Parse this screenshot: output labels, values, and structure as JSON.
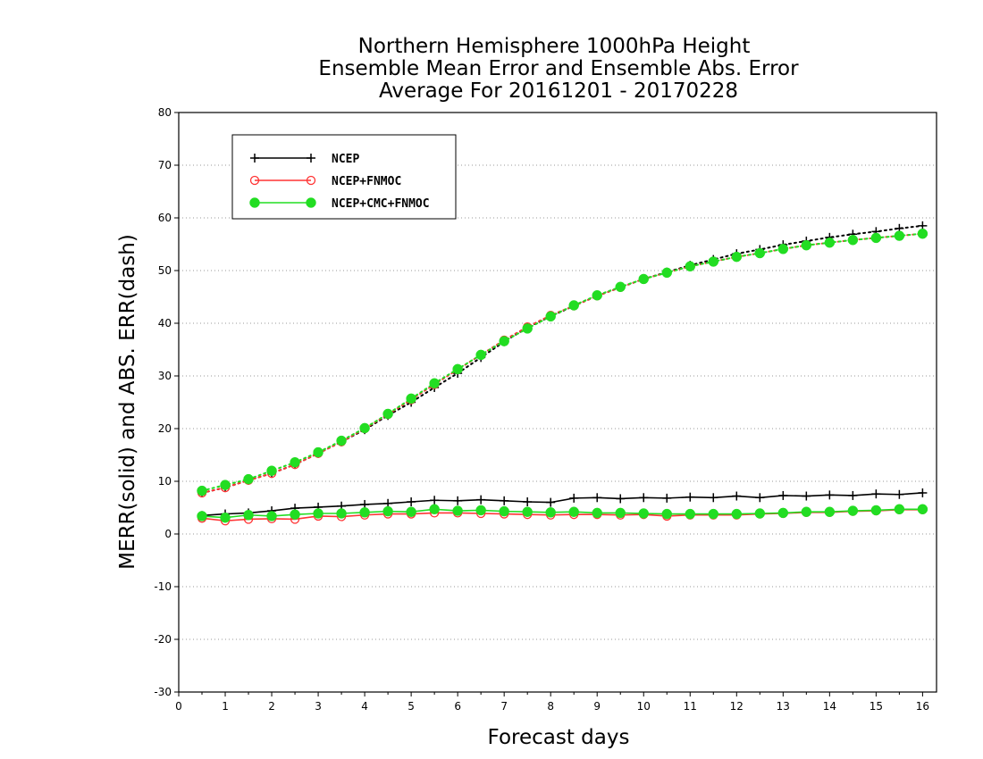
{
  "chart_data": {
    "type": "line",
    "title": [
      "Northern Hemisphere 1000hPa Height",
      "Ensemble Mean Error and Ensemble Abs. Error",
      "Average For 20161201 - 20170228"
    ],
    "xlabel": "Forecast days",
    "ylabel": "MERR(solid) and ABS. ERR(dash)",
    "xlim": [
      0,
      16.3
    ],
    "ylim": [
      -30,
      80
    ],
    "xticks": [
      "0",
      "1",
      "2",
      "3",
      "4",
      "5",
      "6",
      "7",
      "8",
      "9",
      "10",
      "11",
      "12",
      "13",
      "14",
      "15",
      "16"
    ],
    "yticks": [
      "-30",
      "-20",
      "-10",
      "0",
      "10",
      "20",
      "30",
      "40",
      "50",
      "60",
      "70",
      "80"
    ],
    "grid": "horizontal dotted",
    "legend_position": "top-left",
    "x": [
      0.5,
      1,
      1.5,
      2,
      2.5,
      3,
      3.5,
      4,
      4.5,
      5,
      5.5,
      6,
      6.5,
      7,
      7.5,
      8,
      8.5,
      9,
      9.5,
      10,
      10.5,
      11,
      11.5,
      12,
      12.5,
      13,
      13.5,
      14,
      14.5,
      15,
      15.5,
      16
    ],
    "series": [
      {
        "name": "NCEP",
        "color": "#000000",
        "marker": "plus",
        "merr": [
          3.5,
          3.8,
          4.0,
          4.4,
          4.9,
          5.1,
          5.3,
          5.6,
          5.8,
          6.1,
          6.4,
          6.3,
          6.5,
          6.3,
          6.1,
          6.0,
          6.8,
          6.9,
          6.7,
          6.9,
          6.8,
          7.0,
          6.9,
          7.2,
          6.9,
          7.3,
          7.2,
          7.4,
          7.3,
          7.6,
          7.5,
          7.8
        ],
        "abs_err": [
          7.8,
          8.8,
          10.2,
          11.5,
          13.2,
          15.3,
          17.5,
          19.8,
          22.5,
          25.0,
          27.8,
          30.5,
          33.5,
          36.5,
          39.2,
          41.3,
          43.3,
          45.2,
          46.8,
          48.4,
          49.7,
          51.0,
          52.1,
          53.2,
          54.0,
          54.9,
          55.6,
          56.3,
          56.9,
          57.4,
          58.0,
          58.5
        ]
      },
      {
        "name": "NCEP+FNMOC",
        "color": "#ff3333",
        "marker": "open-circle",
        "merr": [
          3.0,
          2.5,
          2.8,
          2.9,
          2.8,
          3.4,
          3.3,
          3.6,
          3.8,
          3.8,
          4.0,
          4.0,
          3.9,
          3.8,
          3.7,
          3.6,
          3.7,
          3.7,
          3.6,
          3.7,
          3.4,
          3.6,
          3.6,
          3.6,
          3.8,
          3.9,
          4.1,
          4.1,
          4.3,
          4.4,
          4.6,
          4.6
        ],
        "abs_err": [
          7.8,
          8.8,
          10.2,
          11.5,
          13.2,
          15.3,
          17.5,
          20.0,
          22.7,
          25.5,
          28.4,
          31.2,
          34.0,
          36.8,
          39.3,
          41.5,
          43.3,
          45.2,
          46.8,
          48.4,
          49.6,
          50.8,
          51.7,
          52.6,
          53.3,
          54.1,
          54.8,
          55.3,
          55.8,
          56.2,
          56.6,
          57.0
        ]
      },
      {
        "name": "NCEP+CMC+FNMOC",
        "color": "#22dd22",
        "marker": "filled-circle",
        "merr": [
          3.4,
          3.1,
          3.6,
          3.4,
          3.7,
          3.9,
          3.9,
          4.1,
          4.3,
          4.2,
          4.7,
          4.4,
          4.5,
          4.3,
          4.2,
          4.1,
          4.2,
          4.0,
          4.0,
          3.9,
          3.8,
          3.8,
          3.8,
          3.8,
          3.9,
          4.0,
          4.2,
          4.2,
          4.4,
          4.5,
          4.7,
          4.7
        ],
        "abs_err": [
          8.2,
          9.3,
          10.4,
          12.0,
          13.6,
          15.5,
          17.7,
          20.1,
          22.8,
          25.7,
          28.6,
          31.3,
          34.0,
          36.6,
          39.0,
          41.3,
          43.4,
          45.3,
          46.9,
          48.4,
          49.6,
          50.8,
          51.7,
          52.6,
          53.3,
          54.1,
          54.8,
          55.3,
          55.8,
          56.2,
          56.6,
          57.0
        ]
      }
    ]
  }
}
